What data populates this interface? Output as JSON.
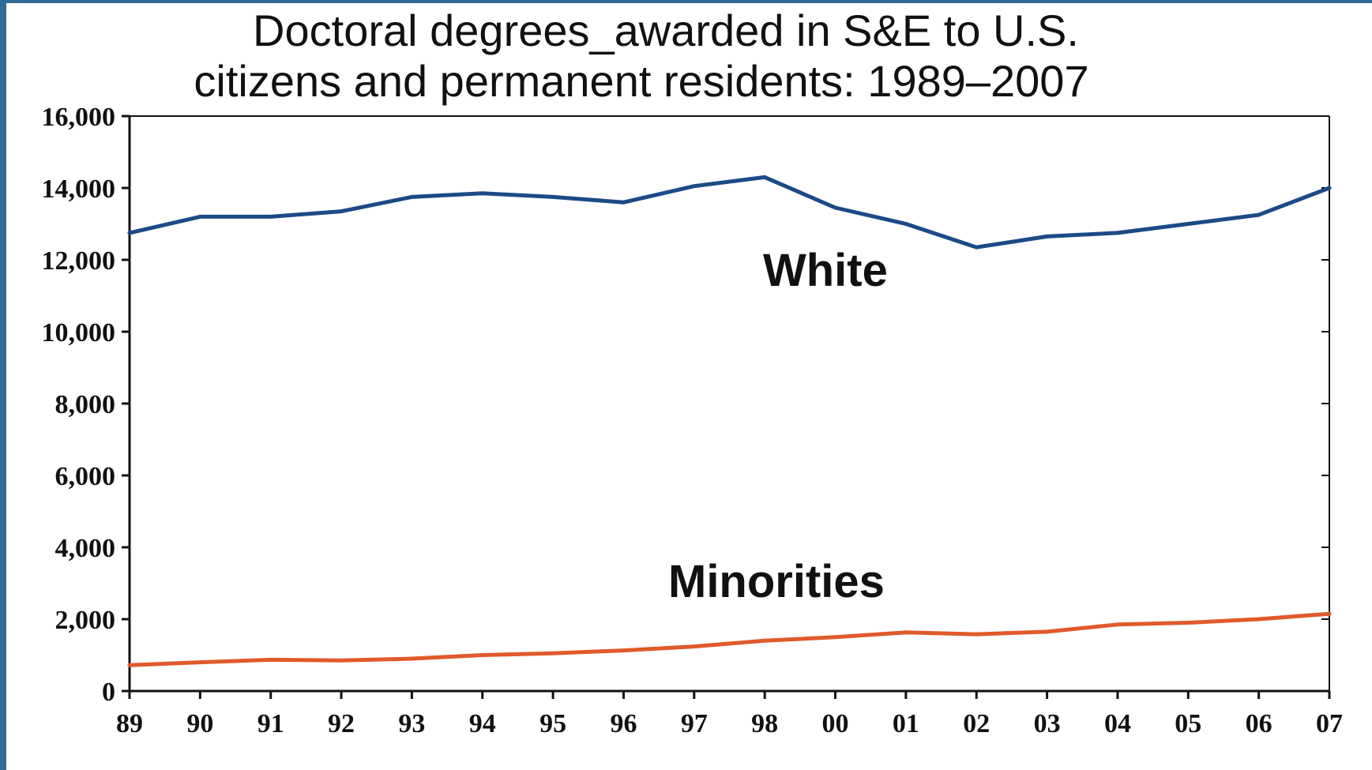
{
  "chart_data": {
    "type": "line",
    "title_lines": [
      "Doctoral degrees_awarded in S&E to U.S.",
      "citizens and permanent residents: 1989–2007"
    ],
    "xlabel": "",
    "ylabel": "",
    "categories": [
      "89",
      "90",
      "91",
      "92",
      "93",
      "94",
      "95",
      "96",
      "97",
      "98",
      "00",
      "01",
      "02",
      "03",
      "04",
      "05",
      "06",
      "07"
    ],
    "y_ticks": [
      "0",
      "2,000",
      "4,000",
      "6,000",
      "8,000",
      "10,000",
      "12,000",
      "14,000",
      "16,000"
    ],
    "ylim": [
      0,
      16000
    ],
    "grid": false,
    "series": [
      {
        "name": "White",
        "color": "#1c4a86",
        "values": [
          12750,
          13200,
          13200,
          13350,
          13750,
          13850,
          13750,
          13600,
          14050,
          14300,
          13450,
          13000,
          12350,
          12650,
          12750,
          13000,
          13250,
          14000
        ]
      },
      {
        "name": "Minorities",
        "color": "#e05a2b",
        "values": [
          720,
          800,
          870,
          850,
          900,
          1000,
          1050,
          1130,
          1240,
          1400,
          1500,
          1630,
          1580,
          1650,
          1850,
          1900,
          2000,
          2150
        ]
      }
    ]
  },
  "frame_color": "#2f6c95"
}
